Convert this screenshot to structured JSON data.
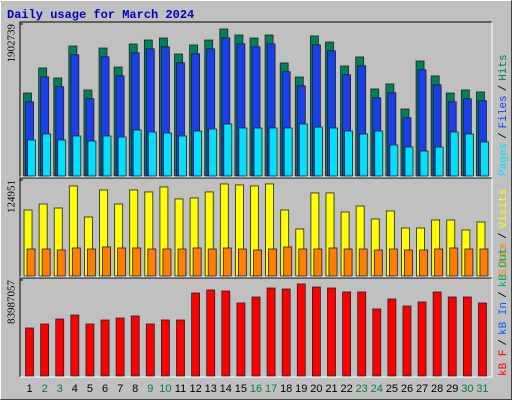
{
  "chart_data": {
    "type": "bar",
    "title": "Daily usage for March 2024",
    "categories": [
      "1",
      "2",
      "3",
      "4",
      "5",
      "6",
      "7",
      "8",
      "9",
      "10",
      "11",
      "12",
      "13",
      "14",
      "15",
      "16",
      "17",
      "18",
      "19",
      "20",
      "21",
      "22",
      "23",
      "24",
      "25",
      "26",
      "27",
      "28",
      "29",
      "30",
      "31"
    ],
    "category_colors": [
      "#000000",
      "#008040",
      "#008040",
      "#000000",
      "#000000",
      "#000000",
      "#000000",
      "#000000",
      "#008040",
      "#008040",
      "#000000",
      "#000000",
      "#000000",
      "#000000",
      "#000000",
      "#008040",
      "#008040",
      "#000000",
      "#000000",
      "#000000",
      "#000000",
      "#000000",
      "#008040",
      "#008040",
      "#000000",
      "#000000",
      "#000000",
      "#000000",
      "#000000",
      "#008040",
      "#008040"
    ],
    "legend_separator": "/",
    "panels": [
      {
        "ylim": [
          0,
          1902739
        ],
        "yticks": [
          1902739
        ],
        "series": [
          {
            "name": "Pages",
            "color": "#00e0ff",
            "values": [
              451000,
              526000,
              451000,
              501000,
              438000,
              501000,
              488000,
              576000,
              551000,
              538000,
              501000,
              563000,
              588000,
              651000,
              601000,
              601000,
              601000,
              601000,
              651000,
              613000,
              601000,
              563000,
              526000,
              563000,
              388000,
              363000,
              313000,
              363000,
              551000,
              526000,
              426000
            ]
          },
          {
            "name": "Files",
            "color": "#1a3fe8",
            "values": [
              929000,
              1242000,
              1117000,
              1517000,
              967000,
              1492000,
              1254000,
              1542000,
              1592000,
              1617000,
              1417000,
              1530000,
              1592000,
              1730000,
              1655000,
              1617000,
              1655000,
              1305000,
              1129000,
              1643000,
              1567000,
              1267000,
              1380000,
              979000,
              1042000,
              729000,
              1330000,
              1142000,
              929000,
              967000,
              942000
            ]
          },
          {
            "name": "Hits",
            "color": "#00805c",
            "values": [
              1039000,
              1352000,
              1227000,
              1627000,
              1077000,
              1602000,
              1364000,
              1652000,
              1702000,
              1727000,
              1527000,
              1640000,
              1702000,
              1840000,
              1765000,
              1727000,
              1765000,
              1415000,
              1239000,
              1753000,
              1677000,
              1377000,
              1490000,
              1089000,
              1152000,
              839000,
              1440000,
              1252000,
              1039000,
              1077000,
              1052000
            ]
          }
        ]
      },
      {
        "ylim": [
          0,
          124951
        ],
        "yticks": [
          124951
        ],
        "series": [
          {
            "name": "Sites",
            "color": "#ff8000",
            "values": [
              35150,
              35150,
              33850,
              36460,
              35150,
              37760,
              36460,
              36460,
              35150,
              35150,
              35150,
              36460,
              35150,
              36460,
              35150,
              33850,
              35150,
              37760,
              35150,
              35150,
              36460,
              35150,
              35150,
              33850,
              35150,
              33850,
              33850,
              35150,
              36460,
              35150,
              35150
            ]
          },
          {
            "name": "Visits",
            "color": "#ffff00",
            "values": [
              85900,
              93700,
              88500,
              117200,
              76800,
              112000,
              93700,
              112000,
              109400,
              115900,
              100300,
              101600,
              109400,
              119800,
              118500,
              117200,
              119800,
              85900,
              61200,
              108100,
              108100,
              83300,
              91100,
              74200,
              84600,
              62500,
              62500,
              72900,
              72900,
              59900,
              70300
            ]
          }
        ]
      },
      {
        "ylim": [
          0,
          83987057
        ],
        "yticks": [
          83987057
        ],
        "series": [
          {
            "name": "kB F",
            "color": "#ff0000",
            "values": [
              41990000,
              45490000,
              49870000,
              53370000,
              45490000,
              48990000,
              50740000,
              52490000,
              45490000,
              48990000,
              48990000,
              72610000,
              75240000,
              74360000,
              63870000,
              69110000,
              76990000,
              76110000,
              80490000,
              77860000,
              76990000,
              73490000,
              73490000,
              58620000,
              67360000,
              61240000,
              64740000,
              73490000,
              69110000,
              69110000,
              63870000
            ]
          }
        ],
        "legend_extra": [
          {
            "name": "kB In",
            "color": "#0060ff"
          },
          {
            "name": "kB Out",
            "color": "#00b050"
          }
        ]
      }
    ]
  }
}
